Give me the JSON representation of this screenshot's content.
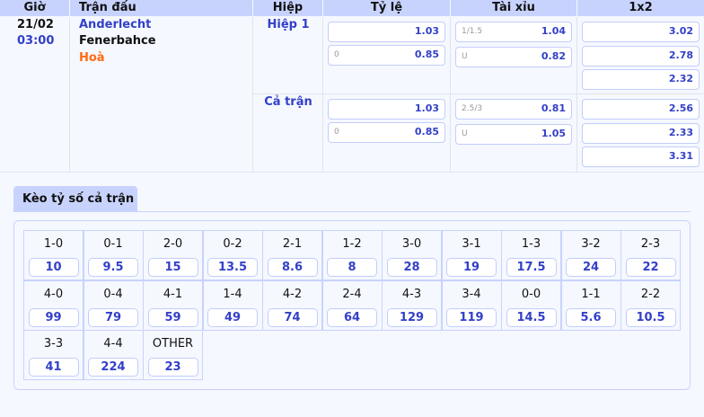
{
  "headers": [
    "Giờ",
    "Trận đấu",
    "Hiệp",
    "Tỷ lệ",
    "Tài xỉu",
    "1x2"
  ],
  "match": {
    "date": "21/02",
    "time": "03:00",
    "home": "Anderlecht",
    "away": "Fenerbahce",
    "draw": "Hoà"
  },
  "periods": [
    {
      "label": "Hiệp 1",
      "handicap": [
        {
          "line": "",
          "odds": "1.03"
        },
        {
          "line": "0",
          "odds": "0.85"
        }
      ],
      "overunder": [
        {
          "line": "1/1.5",
          "odds": "1.04"
        },
        {
          "line": "U",
          "odds": "0.82"
        }
      ],
      "x12": [
        "3.02",
        "2.78",
        "2.32"
      ]
    },
    {
      "label": "Cả trận",
      "handicap": [
        {
          "line": "",
          "odds": "1.03"
        },
        {
          "line": "0",
          "odds": "0.85"
        }
      ],
      "overunder": [
        {
          "line": "2.5/3",
          "odds": "0.81"
        },
        {
          "line": "U",
          "odds": "1.05"
        }
      ],
      "x12": [
        "2.56",
        "2.33",
        "3.31"
      ]
    }
  ],
  "correct_score": {
    "title": "Kèo tỷ số cả trận",
    "items": [
      {
        "s": "1-0",
        "o": "10"
      },
      {
        "s": "0-1",
        "o": "9.5"
      },
      {
        "s": "2-0",
        "o": "15"
      },
      {
        "s": "0-2",
        "o": "13.5"
      },
      {
        "s": "2-1",
        "o": "8.6"
      },
      {
        "s": "1-2",
        "o": "8"
      },
      {
        "s": "3-0",
        "o": "28"
      },
      {
        "s": "3-1",
        "o": "19"
      },
      {
        "s": "1-3",
        "o": "17.5"
      },
      {
        "s": "3-2",
        "o": "24"
      },
      {
        "s": "2-3",
        "o": "22"
      },
      {
        "s": "4-0",
        "o": "99"
      },
      {
        "s": "0-4",
        "o": "79"
      },
      {
        "s": "4-1",
        "o": "59"
      },
      {
        "s": "1-4",
        "o": "49"
      },
      {
        "s": "4-2",
        "o": "74"
      },
      {
        "s": "2-4",
        "o": "64"
      },
      {
        "s": "4-3",
        "o": "129"
      },
      {
        "s": "3-4",
        "o": "119"
      },
      {
        "s": "0-0",
        "o": "14.5"
      },
      {
        "s": "1-1",
        "o": "5.6"
      },
      {
        "s": "2-2",
        "o": "10.5"
      },
      {
        "s": "3-3",
        "o": "41"
      },
      {
        "s": "4-4",
        "o": "224"
      },
      {
        "s": "OTHER",
        "o": "23"
      }
    ]
  },
  "colors": {
    "accent": "#3340c8",
    "header": "#c8d3fd",
    "draw": "#ff6a13"
  }
}
